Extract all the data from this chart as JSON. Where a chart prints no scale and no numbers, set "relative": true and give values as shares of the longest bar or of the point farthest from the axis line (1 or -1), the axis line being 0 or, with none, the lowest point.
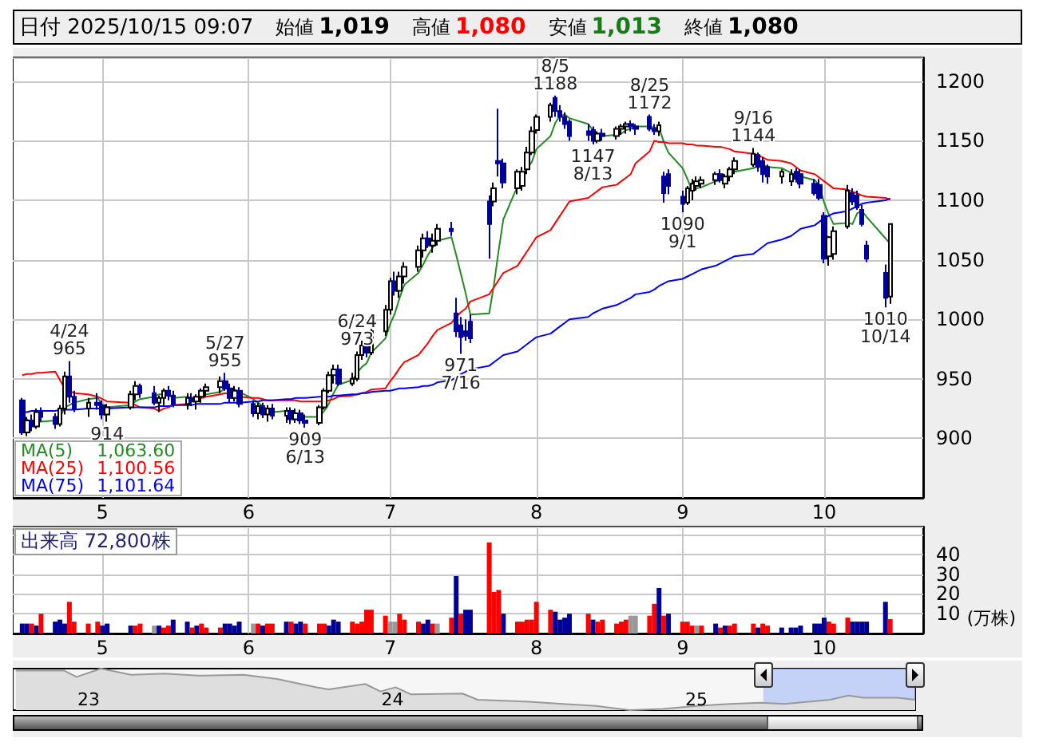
{
  "chart_data": [
    {
      "type": "other",
      "title": "日付 2025/10/15 09:07",
      "annotations": [
        "始値",
        "1,019",
        "高値",
        "1,080",
        "安値",
        "1,013",
        "終値",
        "1,080"
      ]
    },
    {
      "type": "candlestick",
      "legend": "bottom left",
      "grid": true,
      "colors": [
        "#000099",
        "#ffffff",
        "#000099",
        "#ffffff",
        "#000099",
        "#000099",
        "#ffffff",
        "#ffffff",
        "#000099",
        "#000099",
        "#ffffff",
        "#000099",
        "#000099",
        "#ffffff",
        "#ffffff",
        "#ffffff",
        "#000099",
        "#000099",
        "#ffffff",
        "#ffffff",
        "#000099",
        "#000099",
        "#ffffff",
        "#000099",
        "#ffffff",
        "#ffffff",
        "#ffffff",
        "#ffffff",
        "#000099",
        "#000099",
        "#ffffff",
        "#000099",
        "#000099",
        "#ffffff",
        "#000099",
        "#ffffff",
        "#000099",
        "#ffffff",
        "#000099",
        "#ffffff",
        "#000099",
        "#000099",
        "#ffffff",
        "#ffffff",
        "#ffffff",
        "#ffffff",
        "#000099",
        "#ffffff",
        "#ffffff",
        "#ffffff",
        "#000099",
        "#ffffff",
        "#ffffff",
        "#ffffff",
        "#000099",
        "#ffffff",
        "#ffffff",
        "#ffffff",
        "#ffffff",
        "#000099",
        "#ffffff",
        "#ffffff",
        "#000099",
        "#000099",
        "#000099",
        "#000099",
        "#000099",
        "#000099",
        "#ffffff",
        "#000099",
        "#000099",
        "#ffffff",
        "#ffffff",
        "#ffffff",
        "#ffffff",
        "#ffffff",
        "#ffffff",
        "#000099",
        "#000099",
        "#000099",
        "#000099",
        "#000099",
        "#000099",
        "#ffffff",
        "#000099",
        "#ffffff",
        "#ffffff",
        "#ffffff",
        "#000099",
        "#000099",
        "#000099",
        "#000099",
        "#ffffff",
        "#000099",
        "#000099",
        "#000099",
        "#ffffff",
        "#ffffff",
        "#ffffff",
        "#ffffff",
        "#ffffff",
        "#000099",
        "#ffffff",
        "#ffffff",
        "#ffffff",
        "#ffffff",
        "#000099",
        "#000099",
        "#000099",
        "#ffffff",
        "#ffffff",
        "#000099",
        "#000099",
        "#000099",
        "#000099",
        "#000099",
        "#ffffff",
        "#ffffff",
        "#ffffff",
        "#000099",
        "#000099",
        "#000099",
        "#000099",
        "#000099",
        "#ffffff"
      ],
      "x": [
        "2025-04-14",
        "2025-04-15",
        "2025-04-16",
        "2025-04-17",
        "2025-04-18",
        "2025-04-21",
        "2025-04-22",
        "2025-04-23",
        "2025-04-24",
        "2025-04-25",
        "2025-04-28",
        "2025-04-30",
        "2025-05-01",
        "2025-05-02",
        "2025-05-07",
        "2025-05-08",
        "2025-05-09",
        "2025-05-12",
        "2025-05-13",
        "2025-05-14",
        "2025-05-15",
        "2025-05-16",
        "2025-05-19",
        "2025-05-20",
        "2025-05-21",
        "2025-05-22",
        "2025-05-23",
        "2025-05-26",
        "2025-05-27",
        "2025-05-28",
        "2025-05-29",
        "2025-05-30",
        "2025-06-02",
        "2025-06-03",
        "2025-06-04",
        "2025-06-05",
        "2025-06-06",
        "2025-06-09",
        "2025-06-10",
        "2025-06-11",
        "2025-06-12",
        "2025-06-13",
        "2025-06-16",
        "2025-06-17",
        "2025-06-18",
        "2025-06-19",
        "2025-06-20",
        "2025-06-23",
        "2025-06-24",
        "2025-06-25",
        "2025-06-26",
        "2025-06-27",
        "2025-06-30",
        "2025-07-01",
        "2025-07-02",
        "2025-07-03",
        "2025-07-04",
        "2025-07-07",
        "2025-07-08",
        "2025-07-09",
        "2025-07-10",
        "2025-07-11",
        "2025-07-14",
        "2025-07-15",
        "2025-07-16",
        "2025-07-17",
        "2025-07-18",
        "2025-07-22",
        "2025-07-23",
        "2025-07-24",
        "2025-07-25",
        "2025-07-28",
        "2025-07-29",
        "2025-07-30",
        "2025-07-31",
        "2025-08-01",
        "2025-08-04",
        "2025-08-05",
        "2025-08-06",
        "2025-08-07",
        "2025-08-08",
        "2025-08-12",
        "2025-08-13",
        "2025-08-14",
        "2025-08-15",
        "2025-08-18",
        "2025-08-19",
        "2025-08-20",
        "2025-08-21",
        "2025-08-22",
        "2025-08-25",
        "2025-08-26",
        "2025-08-27",
        "2025-08-28",
        "2025-08-29",
        "2025-09-01",
        "2025-09-02",
        "2025-09-03",
        "2025-09-04",
        "2025-09-05",
        "2025-09-08",
        "2025-09-09",
        "2025-09-10",
        "2025-09-11",
        "2025-09-12",
        "2025-09-16",
        "2025-09-17",
        "2025-09-18",
        "2025-09-19",
        "2025-09-22",
        "2025-09-24",
        "2025-09-25",
        "2025-09-26",
        "2025-09-29",
        "2025-09-30",
        "2025-10-01",
        "2025-10-02",
        "2025-10-03",
        "2025-10-06",
        "2025-10-07",
        "2025-10-08",
        "2025-10-09",
        "2025-10-10",
        "2025-10-14",
        "2025-10-15"
      ],
      "ohlc": [
        [
          932,
          934,
          903,
          905
        ],
        [
          905,
          918,
          902,
          915
        ],
        [
          915,
          920,
          906,
          910
        ],
        [
          910,
          925,
          908,
          922
        ],
        [
          922,
          926,
          914,
          918
        ],
        [
          918,
          921,
          908,
          912
        ],
        [
          912,
          928,
          910,
          925
        ],
        [
          925,
          956,
          920,
          952
        ],
        [
          952,
          965,
          930,
          935
        ],
        [
          935,
          940,
          922,
          925
        ],
        [
          925,
          934,
          918,
          930
        ],
        [
          930,
          938,
          924,
          928
        ],
        [
          928,
          932,
          916,
          920
        ],
        [
          920,
          929,
          914,
          926
        ],
        [
          926,
          940,
          924,
          937
        ],
        [
          937,
          948,
          932,
          944
        ],
        [
          944,
          946,
          934,
          938
        ],
        [
          938,
          944,
          928,
          930
        ],
        [
          930,
          936,
          922,
          934
        ],
        [
          934,
          942,
          928,
          940
        ],
        [
          940,
          944,
          932,
          936
        ],
        [
          936,
          940,
          926,
          929
        ],
        [
          929,
          938,
          924,
          934
        ],
        [
          934,
          938,
          927,
          931
        ],
        [
          931,
          937,
          924,
          935
        ],
        [
          935,
          942,
          930,
          940
        ],
        [
          940,
          946,
          935,
          943
        ],
        [
          943,
          952,
          938,
          948
        ],
        [
          948,
          955,
          940,
          942
        ],
        [
          942,
          946,
          930,
          934
        ],
        [
          934,
          944,
          931,
          940
        ],
        [
          940,
          943,
          926,
          929
        ],
        [
          929,
          932,
          918,
          921
        ],
        [
          921,
          930,
          916,
          927
        ],
        [
          927,
          930,
          917,
          920
        ],
        [
          920,
          928,
          914,
          925
        ],
        [
          925,
          929,
          916,
          919
        ],
        [
          919,
          926,
          913,
          923
        ],
        [
          923,
          926,
          912,
          916
        ],
        [
          916,
          925,
          913,
          921
        ],
        [
          921,
          924,
          912,
          915
        ],
        [
          915,
          920,
          909,
          913
        ],
        [
          913,
          928,
          911,
          926
        ],
        [
          926,
          942,
          924,
          940
        ],
        [
          940,
          956,
          938,
          953
        ],
        [
          953,
          962,
          946,
          958
        ],
        [
          958,
          962,
          944,
          946
        ],
        [
          946,
          955,
          944,
          950
        ],
        [
          950,
          973,
          948,
          970
        ],
        [
          970,
          982,
          966,
          978
        ],
        [
          978,
          980,
          968,
          972
        ],
        [
          972,
          992,
          970,
          990
        ],
        [
          990,
          1012,
          986,
          1008
        ],
        [
          1008,
          1035,
          1004,
          1032
        ],
        [
          1032,
          1040,
          1020,
          1024
        ],
        [
          1024,
          1040,
          1018,
          1036
        ],
        [
          1036,
          1048,
          1030,
          1044
        ],
        [
          1044,
          1062,
          1040,
          1058
        ],
        [
          1058,
          1072,
          1052,
          1068
        ],
        [
          1068,
          1074,
          1060,
          1062
        ],
        [
          1062,
          1072,
          1056,
          1066
        ],
        [
          1066,
          1080,
          1062,
          1076
        ],
        [
          1076,
          1082,
          1070,
          1074
        ],
        [
          1005,
          1018,
          985,
          990
        ],
        [
          995,
          1002,
          971,
          985
        ],
        [
          990,
          1000,
          982,
          986
        ],
        [
          998,
          1004,
          980,
          984
        ],
        [
          1099,
          1104,
          1051,
          1080
        ],
        [
          1099,
          1115,
          1095,
          1110
        ],
        [
          1133,
          1177,
          1120,
          1131
        ],
        [
          1131,
          1135,
          1110,
          1115
        ],
        [
          1110,
          1126,
          1105,
          1124
        ],
        [
          1112,
          1128,
          1108,
          1124
        ],
        [
          1126,
          1145,
          1122,
          1140
        ],
        [
          1140,
          1162,
          1138,
          1158
        ],
        [
          1159,
          1172,
          1156,
          1170
        ],
        [
          1170,
          1182,
          1166,
          1180
        ],
        [
          1186,
          1188,
          1170,
          1175
        ],
        [
          1175,
          1180,
          1166,
          1170
        ],
        [
          1170,
          1174,
          1160,
          1164
        ],
        [
          1166,
          1168,
          1150,
          1154
        ],
        [
          1158,
          1164,
          1150,
          1155
        ],
        [
          1159,
          1162,
          1147,
          1150
        ],
        [
          1150,
          1158,
          1148,
          1156
        ],
        [
          1156,
          1160,
          1150,
          1154
        ],
        [
          1154,
          1162,
          1151,
          1160
        ],
        [
          1160,
          1164,
          1155,
          1162
        ],
        [
          1162,
          1166,
          1156,
          1164
        ],
        [
          1164,
          1167,
          1158,
          1162
        ],
        [
          1162,
          1164,
          1155,
          1160
        ],
        [
          1170,
          1172,
          1158,
          1160
        ],
        [
          1160,
          1164,
          1155,
          1158
        ],
        [
          1158,
          1166,
          1154,
          1163
        ],
        [
          1120,
          1124,
          1098,
          1106
        ],
        [
          1122,
          1126,
          1105,
          1112
        ],
        [
          1103,
          1108,
          1090,
          1097
        ],
        [
          1098,
          1112,
          1096,
          1110
        ],
        [
          1108,
          1118,
          1100,
          1114
        ],
        [
          1112,
          1120,
          1108,
          1116
        ],
        [
          1114,
          1120,
          1110,
          1117
        ],
        [
          1117,
          1124,
          1113,
          1122
        ],
        [
          1122,
          1126,
          1115,
          1117
        ],
        [
          1114,
          1122,
          1110,
          1120
        ],
        [
          1120,
          1128,
          1116,
          1126
        ],
        [
          1126,
          1136,
          1122,
          1133
        ],
        [
          1130,
          1144,
          1128,
          1139
        ],
        [
          1138,
          1140,
          1124,
          1128
        ],
        [
          1133,
          1136,
          1115,
          1122
        ],
        [
          1128,
          1130,
          1114,
          1120
        ],
        [
          1120,
          1126,
          1114,
          1124
        ],
        [
          1116,
          1126,
          1112,
          1122
        ],
        [
          1124,
          1127,
          1115,
          1118
        ],
        [
          1122,
          1126,
          1110,
          1114
        ],
        [
          1114,
          1118,
          1104,
          1106
        ],
        [
          1113,
          1118,
          1100,
          1102
        ],
        [
          1087,
          1090,
          1047,
          1051
        ],
        [
          1053,
          1070,
          1045,
          1069
        ],
        [
          1055,
          1078,
          1050,
          1074
        ],
        [
          1078,
          1113,
          1076,
          1108
        ],
        [
          1106,
          1110,
          1096,
          1099
        ],
        [
          1104,
          1108,
          1092,
          1094
        ],
        [
          1092,
          1096,
          1078,
          1080
        ],
        [
          1062,
          1066,
          1048,
          1051
        ],
        [
          1039,
          1046,
          1010,
          1018
        ],
        [
          1019,
          1080,
          1013,
          1080
        ]
      ],
      "series": [
        {
          "type": "line",
          "name": "MA(5)",
          "color": "#228b22",
          "values": [
            918,
            916,
            913,
            914,
            914,
            915,
            917,
            926,
            928,
            930,
            933,
            934,
            928,
            926,
            928,
            931,
            933,
            935,
            937,
            937,
            936,
            934,
            935,
            934,
            933,
            934,
            937,
            939,
            942,
            941,
            941,
            939,
            933,
            930,
            927,
            924,
            922,
            923,
            null,
            null,
            919,
            918,
            918,
            923,
            929,
            938,
            945,
            949,
            955,
            960,
            963,
            972,
            984,
            996,
            1005,
            1018,
            1029,
            1039,
            1046,
            1054,
            1060,
            1066,
            1069,
            1054,
            1038,
            1022,
            1004,
            1005,
            1029,
            1058,
            1084,
            1112,
            1121,
            1127,
            1132,
            1143,
            1154,
            1165,
            1171,
            1172,
            1169,
            1164,
            1159,
            1156,
            1154,
            1155,
            1156,
            1159,
            1160,
            1162,
            1162,
            1161,
            1161,
            1149,
            1140,
            1127,
            1118,
            1108,
            1110,
            1111,
            1116,
            1117,
            null,
            1120,
            1124,
            1127,
            1129,
            1130,
            1128,
            1127,
            1123,
            1121,
            1120,
            1117,
            1112,
            1098,
            1088,
            1080,
            1081,
            1080,
            1089,
            1091,
            1086,
            1068,
            1063.6
          ]
        },
        {
          "type": "line",
          "name": "MA(25)",
          "color": "#ff0000",
          "values": [
            953,
            954,
            954,
            955,
            955,
            956,
            949,
            942,
            940,
            938,
            937,
            935,
            933,
            931,
            930,
            928,
            926,
            925,
            923,
            925,
            926,
            928,
            929,
            null,
            932,
            934,
            935,
            937,
            938,
            937,
            null,
            935,
            934,
            934,
            933,
            932,
            932,
            932,
            932,
            932,
            931,
            931,
            931,
            931,
            932,
            933,
            935,
            936,
            937,
            938,
            939,
            941,
            942,
            948,
            953,
            959,
            964,
            970,
            975,
            980,
            986,
            991,
            997,
            1002,
            1006,
            1009,
            1015,
            1021,
            1027,
            1033,
            1039,
            1045,
            1051,
            1057,
            1063,
            1069,
            1075,
            1081,
            1087,
            1093,
            1099,
            1102,
            1105,
            1108,
            1111,
            1113,
            1116,
            1119,
            1122,
            1131,
            1141,
            1150,
            1149,
            1149,
            1148,
            1148,
            1147,
            1147,
            1146,
            1146,
            1145,
            1145,
            1144,
            1143,
            1141,
            1139,
            1138,
            1136,
            1134,
            1133,
            1131,
            1128,
            1125,
            1122,
            1119,
            1116,
            1113,
            1110,
            1109,
            1107,
            1106,
            1104,
            1103,
            1102,
            1100.56
          ]
        },
        {
          "type": "line",
          "name": "MA(75)",
          "color": "#0000ff",
          "values": [
            922,
            922,
            923,
            923,
            923,
            923,
            924,
            924,
            924,
            924,
            925,
            925,
            925,
            925,
            926,
            926,
            926,
            926,
            927,
            927,
            927,
            928,
            928,
            928,
            929,
            929,
            929,
            929,
            930,
            930,
            930,
            930,
            931,
            931,
            932,
            932,
            932,
            933,
            933,
            934,
            934,
            934,
            935,
            935,
            935,
            936,
            936,
            937,
            937,
            938,
            938,
            939,
            940,
            940,
            941,
            942,
            942,
            943,
            944,
            944,
            945,
            947,
            949,
            951,
            954,
            956,
            958,
            961,
            964,
            967,
            970,
            973,
            976,
            979,
            982,
            985,
            988,
            991,
            994,
            997,
            1000,
            1002,
            1005,
            1007,
            1009,
            1012,
            1014,
            1016,
            1018,
            1021,
            1023,
            1025,
            1028,
            1030,
            1032,
            1034,
            1036,
            1038,
            1040,
            1042,
            1045,
            1047,
            1049,
            1051,
            1053,
            1055,
            1058,
            1061,
            1064,
            1067,
            1070,
            1073,
            1076,
            1079,
            1082,
            1085,
            1087,
            1089,
            1091,
            1093,
            1095,
            1097,
            1098,
            1100,
            1101.64
          ]
        }
      ],
      "xlim": [
        "2025-04-12",
        "2025-10-22"
      ],
      "xticks": [
        {
          "value": "2025-05-01",
          "label": "5"
        },
        {
          "value": "2025-06-01",
          "label": "6"
        },
        {
          "value": "2025-07-01",
          "label": "7"
        },
        {
          "value": "2025-08-01",
          "label": "8"
        },
        {
          "value": "2025-09-01",
          "label": "9"
        },
        {
          "value": "2025-10-01",
          "label": "10"
        }
      ],
      "ylim": [
        850,
        1220
      ],
      "yticks": [
        900,
        950,
        1000,
        1050,
        1100,
        1150,
        1200
      ],
      "annotations": [
        {
          "text": "4/24\n965",
          "x": "2025-04-24",
          "y": 965
        },
        {
          "text": "914",
          "x": "2025-05-02",
          "y": 914
        },
        {
          "text": "5/27\n955",
          "x": "2025-05-27",
          "y": 955
        },
        {
          "text": "909\n6/13",
          "x": "2025-06-13",
          "y": 909
        },
        {
          "text": "6/24\n973",
          "x": "2025-06-24",
          "y": 973
        },
        {
          "text": "971\n7/16",
          "x": "2025-07-16",
          "y": 971
        },
        {
          "text": "8/5\n1188",
          "x": "2025-08-05",
          "y": 1188
        },
        {
          "text": "1147\n8/13",
          "x": "2025-08-13",
          "y": 1147
        },
        {
          "text": "8/25\n1172",
          "x": "2025-08-25",
          "y": 1172
        },
        {
          "text": "1090\n9/1",
          "x": "2025-09-01",
          "y": 1090
        },
        {
          "text": "9/16\n1144",
          "x": "2025-09-16",
          "y": 1144
        },
        {
          "text": "1010\n10/14",
          "x": "2025-10-14",
          "y": 1010
        },
        "1,063.60",
        "1,100.56",
        "1,101.64"
      ]
    },
    {
      "type": "bar",
      "title": "出来高 72,800株",
      "ylabel": "(万株)",
      "grid": true,
      "x": [
        "2025-04-14",
        "2025-04-15",
        "2025-04-16",
        "2025-04-17",
        "2025-04-18",
        "2025-04-21",
        "2025-04-22",
        "2025-04-23",
        "2025-04-24",
        "2025-04-25",
        "2025-04-28",
        "2025-04-30",
        "2025-05-01",
        "2025-05-02",
        "2025-05-07",
        "2025-05-08",
        "2025-05-09",
        "2025-05-12",
        "2025-05-13",
        "2025-05-14",
        "2025-05-15",
        "2025-05-16",
        "2025-05-19",
        "2025-05-20",
        "2025-05-21",
        "2025-05-22",
        "2025-05-23",
        "2025-05-26",
        "2025-05-27",
        "2025-05-28",
        "2025-05-29",
        "2025-05-30",
        "2025-06-02",
        "2025-06-03",
        "2025-06-04",
        "2025-06-05",
        "2025-06-06",
        "2025-06-09",
        "2025-06-10",
        "2025-06-11",
        "2025-06-12",
        "2025-06-13",
        "2025-06-16",
        "2025-06-17",
        "2025-06-18",
        "2025-06-19",
        "2025-06-20",
        "2025-06-23",
        "2025-06-24",
        "2025-06-25",
        "2025-06-26",
        "2025-06-27",
        "2025-06-30",
        "2025-07-01",
        "2025-07-02",
        "2025-07-03",
        "2025-07-04",
        "2025-07-07",
        "2025-07-08",
        "2025-07-09",
        "2025-07-10",
        "2025-07-11",
        "2025-07-14",
        "2025-07-15",
        "2025-07-16",
        "2025-07-17",
        "2025-07-18",
        "2025-07-22",
        "2025-07-23",
        "2025-07-24",
        "2025-07-25",
        "2025-07-28",
        "2025-07-29",
        "2025-07-30",
        "2025-07-31",
        "2025-08-01",
        "2025-08-04",
        "2025-08-05",
        "2025-08-06",
        "2025-08-07",
        "2025-08-08",
        "2025-08-12",
        "2025-08-13",
        "2025-08-14",
        "2025-08-15",
        "2025-08-18",
        "2025-08-19",
        "2025-08-20",
        "2025-08-21",
        "2025-08-22",
        "2025-08-25",
        "2025-08-26",
        "2025-08-27",
        "2025-08-28",
        "2025-08-29",
        "2025-09-01",
        "2025-09-02",
        "2025-09-03",
        "2025-09-04",
        "2025-09-05",
        "2025-09-08",
        "2025-09-09",
        "2025-09-10",
        "2025-09-11",
        "2025-09-12",
        "2025-09-16",
        "2025-09-17",
        "2025-09-18",
        "2025-09-19",
        "2025-09-22",
        "2025-09-24",
        "2025-09-25",
        "2025-09-26",
        "2025-09-29",
        "2025-09-30",
        "2025-10-01",
        "2025-10-02",
        "2025-10-03",
        "2025-10-06",
        "2025-10-07",
        "2025-10-08",
        "2025-10-09",
        "2025-10-10",
        "2025-10-14",
        "2025-10-15"
      ],
      "values": [
        5,
        5,
        5,
        4,
        10,
        6,
        7,
        5,
        16,
        6,
        5,
        6,
        4,
        5,
        4,
        4,
        5,
        4,
        4,
        3,
        4,
        7,
        6,
        3,
        4,
        5,
        3,
        3,
        5,
        5,
        4,
        6,
        5,
        5,
        4,
        5,
        5,
        6,
        6,
        5,
        6,
        5,
        5,
        5,
        4,
        7,
        6,
        6,
        5,
        6,
        12,
        12,
        9,
        6,
        6,
        10,
        7,
        6,
        5,
        7,
        5,
        5,
        8,
        29,
        10,
        12,
        12,
        46,
        21,
        22,
        10,
        6,
        6,
        7,
        7,
        16,
        12,
        11,
        7,
        8,
        10,
        10,
        7,
        6,
        7,
        5,
        6,
        7,
        9,
        9,
        9,
        15,
        23,
        9,
        10,
        6,
        6,
        4,
        4,
        4,
        5,
        3,
        4,
        4,
        5,
        5,
        3,
        5,
        4,
        3,
        3,
        3,
        4,
        5,
        5,
        8,
        6,
        5,
        8,
        6,
        6,
        6,
        6,
        16,
        7.28
      ],
      "colors": [
        "#000099",
        "#000099",
        "#ff0000",
        "#000099",
        "#ff0000",
        "#000099",
        "#000099",
        "#000099",
        "#ff0000",
        "#ff0000",
        "#ff0000",
        "#ff0000",
        "#000099",
        "#000099",
        "#000099",
        "#ff0000",
        "#ff0000",
        "#999999",
        "#000099",
        "#ff0000",
        "#ff0000",
        "#000099",
        "#000099",
        "#ff0000",
        "#000099",
        "#ff0000",
        "#ff0000",
        "#ff0000",
        "#000099",
        "#000099",
        "#000099",
        "#000099",
        "#999999",
        "#ff0000",
        "#000099",
        "#ff0000",
        "#ff0000",
        "#000099",
        "#ff0000",
        "#000099",
        "#000099",
        "#ff0000",
        "#ff0000",
        "#ff0000",
        "#000099",
        "#000099",
        "#000099",
        "#ff0000",
        "#ff0000",
        "#ff0000",
        "#ff0000",
        "#ff0000",
        "#ff0000",
        "#999999",
        "#999999",
        "#ff0000",
        "#ff0000",
        "#ff0000",
        "#000099",
        "#000099",
        "#ff0000",
        "#999999",
        "#ff0000",
        "#000099",
        "#ff0000",
        "#000099",
        "#000099",
        "#ff0000",
        "#ff0000",
        "#ff0000",
        "#000099",
        "#ff0000",
        "#ff0000",
        "#ff0000",
        "#ff0000",
        "#ff0000",
        "#ff0000",
        "#000099",
        "#000099",
        "#000099",
        "#000099",
        "#ff0000",
        "#000099",
        "#ff0000",
        "#ff0000",
        "#ff0000",
        "#ff0000",
        "#ff0000",
        "#999999",
        "#999999",
        "#ff0000",
        "#ff0000",
        "#000099",
        "#ff0000",
        "#000099",
        "#ff0000",
        "#ff0000",
        "#ff0000",
        "#999999",
        "#ff0000",
        "#000099",
        "#ff0000",
        "#000099",
        "#ff0000",
        "#ff0000",
        "#ff0000",
        "#000099",
        "#ff0000",
        "#ff0000",
        "#000099",
        "#000099",
        "#000099",
        "#000099",
        "#000099",
        "#000099",
        "#000099",
        "#ff0000",
        "#ff0000",
        "#ff0000",
        "#000099",
        "#000099",
        "#000099",
        "#000099",
        "#000099",
        "#ff0000"
      ],
      "xlim": [
        "2025-04-12",
        "2025-10-22"
      ],
      "xticks": [
        {
          "value": "2025-05-01",
          "label": "5"
        },
        {
          "value": "2025-06-01",
          "label": "6"
        },
        {
          "value": "2025-07-01",
          "label": "7"
        },
        {
          "value": "2025-08-01",
          "label": "8"
        },
        {
          "value": "2025-09-01",
          "label": "9"
        },
        {
          "value": "2025-10-01",
          "label": "10"
        }
      ],
      "ylim": [
        0,
        54
      ],
      "yticks": [
        10,
        20,
        30,
        40
      ]
    },
    {
      "type": "line",
      "relative": true,
      "color": "#999999",
      "tick_labels": "x",
      "x": [
        22.76,
        22.92,
        22.96,
        23.04,
        23.14,
        23.25,
        23.36,
        23.51,
        23.62,
        23.75,
        23.79,
        23.91,
        23.96,
        24.01,
        24.06,
        24.23,
        24.28,
        24.45,
        24.56,
        24.67,
        24.78,
        24.89,
        25.0,
        25.11,
        25.21,
        25.29,
        25.44,
        25.5,
        25.55,
        25.66,
        25.72
      ],
      "values": [
        0.95,
        0.95,
        0.8,
        1,
        0.85,
        0.88,
        0.83,
        0.85,
        0.75,
        0.55,
        0.5,
        0.63,
        0.45,
        0.55,
        0.38,
        0.4,
        0.25,
        0.2,
        0.15,
        0.1,
        0,
        0.03,
        0.1,
        0.15,
        0.18,
        0.15,
        0.25,
        0.35,
        0.3,
        0.3,
        0.25
      ],
      "xlim": [
        22.75,
        25.72
      ],
      "xticks": [
        23,
        24,
        25
      ],
      "bands": [
        {
          "axis": "x",
          "from": 25.22,
          "to": 25.72,
          "color": "#b4c6f7"
        }
      ]
    }
  ]
}
